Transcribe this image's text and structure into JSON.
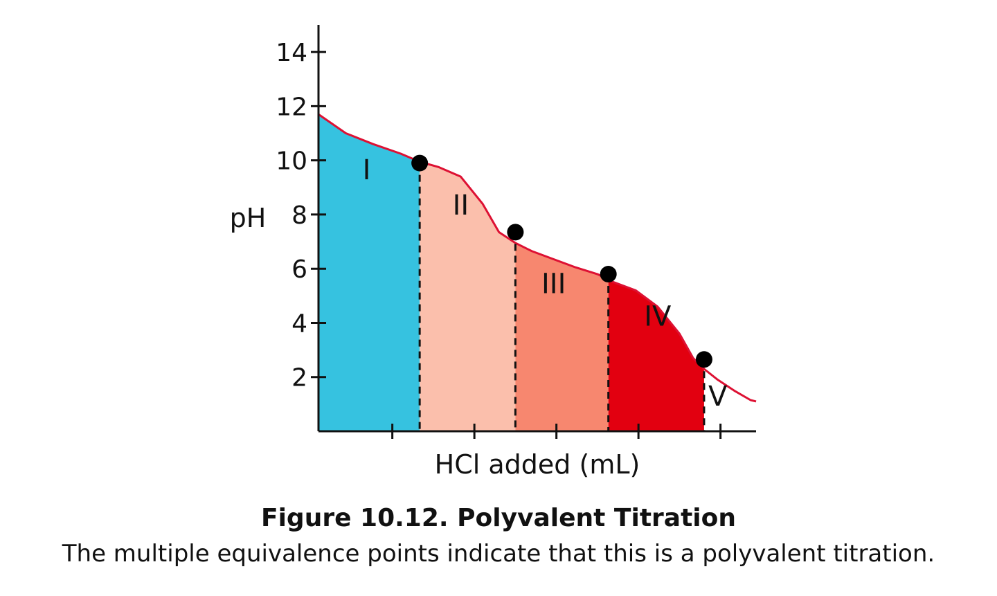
{
  "chart_data": {
    "type": "area",
    "xlabel": "HCl added (mL)",
    "ylabel": "pH",
    "xlim": [
      0,
      8
    ],
    "ylim": [
      0,
      15
    ],
    "y_ticks": [
      2,
      4,
      6,
      8,
      10,
      12,
      14
    ],
    "y_tick_labels": [
      "2",
      "4",
      "6",
      "8",
      "10",
      "12",
      "14"
    ],
    "x_ticks": [
      1.35,
      2.85,
      4.35,
      5.85,
      7.35
    ],
    "x_tick_labels": [],
    "grid": false,
    "curve": {
      "color": "#dd1133",
      "x": [
        0,
        0.5,
        1.0,
        1.5,
        1.85,
        2.2,
        2.6,
        3.0,
        3.3,
        3.6,
        3.9,
        4.3,
        4.7,
        5.1,
        5.4,
        5.8,
        6.2,
        6.6,
        6.85,
        7.05,
        7.3,
        7.6,
        7.9,
        8.0
      ],
      "y": [
        11.7,
        11.0,
        10.6,
        10.25,
        9.95,
        9.75,
        9.4,
        8.4,
        7.35,
        6.95,
        6.65,
        6.35,
        6.05,
        5.8,
        5.5,
        5.2,
        4.6,
        3.6,
        2.7,
        2.3,
        1.9,
        1.5,
        1.15,
        1.1
      ]
    },
    "equivalence_points": [
      {
        "x": 1.85,
        "y": 9.9
      },
      {
        "x": 3.6,
        "y": 7.35
      },
      {
        "x": 5.3,
        "y": 5.8
      },
      {
        "x": 7.05,
        "y": 2.65
      }
    ],
    "regions": [
      {
        "label": "I",
        "x_start": 0,
        "x_end": 1.85,
        "color": "#36c2e0",
        "label_x": 0.88,
        "label_y": 9.3
      },
      {
        "label": "II",
        "x_start": 1.85,
        "x_end": 3.6,
        "color": "#fbbfac",
        "label_x": 2.6,
        "label_y": 8.0
      },
      {
        "label": "III",
        "x_start": 3.6,
        "x_end": 5.3,
        "color": "#f7876f",
        "label_x": 4.3,
        "label_y": 5.1
      },
      {
        "label": "IV",
        "x_start": 5.3,
        "x_end": 7.05,
        "color": "#e20010",
        "label_x": 6.2,
        "label_y": 3.9
      },
      {
        "label": "V",
        "x_start": 7.05,
        "x_end": 8.0,
        "color": "#ffffff",
        "label_x": 7.3,
        "label_y": 0.95
      }
    ]
  },
  "caption": {
    "title": "Figure 10.12.  Polyvalent Titration",
    "text": "The multiple equivalence points indicate that this is a polyvalent titration."
  }
}
